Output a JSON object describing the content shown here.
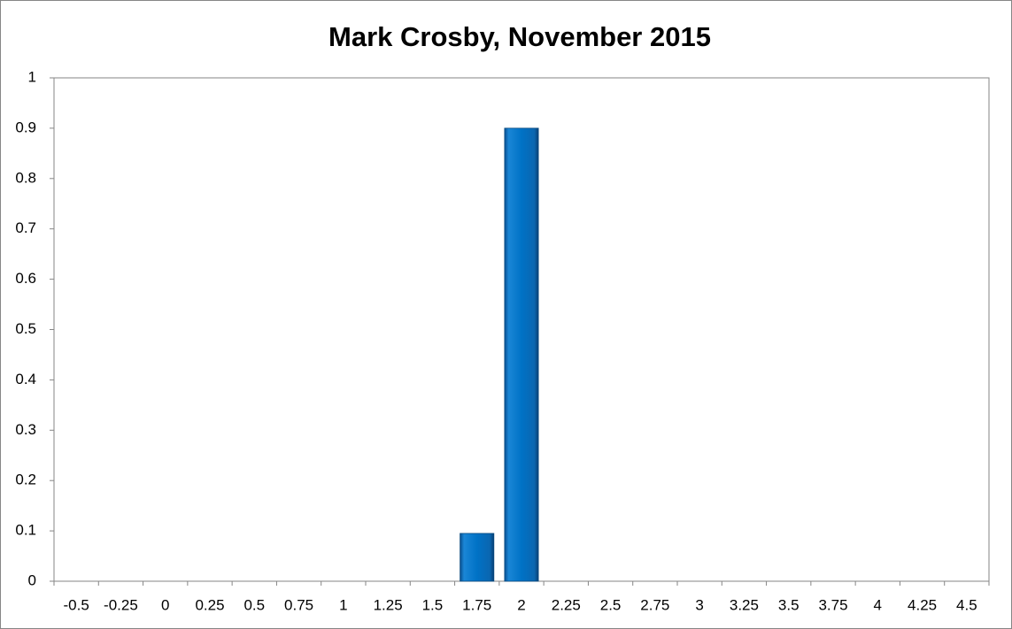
{
  "chart_data": {
    "type": "bar",
    "title": "Mark Crosby, November 2015",
    "categories": [
      "-0.5",
      "-0.25",
      "0",
      "0.25",
      "0.5",
      "0.75",
      "1",
      "1.25",
      "1.5",
      "1.75",
      "2",
      "2.25",
      "2.5",
      "2.75",
      "3",
      "3.25",
      "3.5",
      "3.75",
      "4",
      "4.25",
      "4.5"
    ],
    "values": [
      0,
      0,
      0,
      0,
      0,
      0,
      0,
      0,
      0,
      0.095,
      0.9,
      0,
      0,
      0,
      0,
      0,
      0,
      0,
      0,
      0,
      0
    ],
    "color": "#0070c0",
    "ylim": [
      0,
      1
    ],
    "yticks": [
      0,
      0.1,
      0.2,
      0.3,
      0.4,
      0.5,
      0.6,
      0.7,
      0.8,
      0.9,
      1
    ],
    "grid": false
  }
}
